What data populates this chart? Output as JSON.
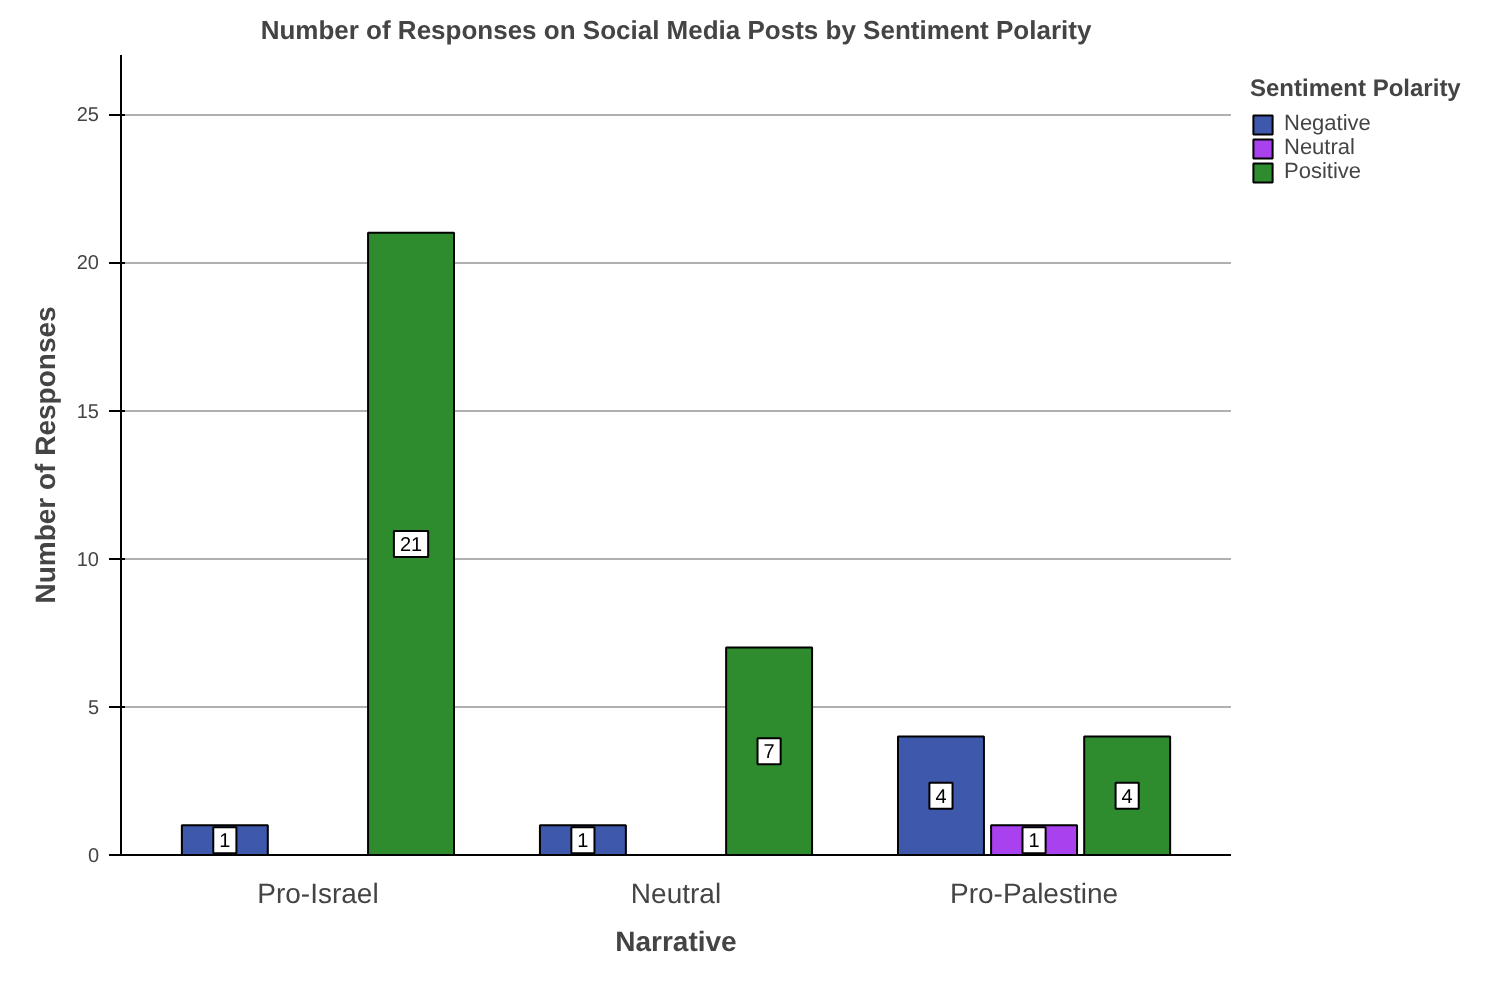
{
  "chart_data": {
    "type": "bar",
    "title": "Number of Responses on Social Media Posts by Sentiment Polarity",
    "xlabel": "Narrative",
    "ylabel": "Number of Responses",
    "legend_title": "Sentiment Polarity",
    "categories": [
      "Pro-Israel",
      "Neutral",
      "Pro-Palestine"
    ],
    "series": [
      {
        "name": "Negative",
        "color": "#3e58ac",
        "values": [
          1,
          1,
          4
        ]
      },
      {
        "name": "Neutral",
        "color": "#a941ef",
        "values": [
          null,
          null,
          1
        ]
      },
      {
        "name": "Positive",
        "color": "#2e8b2e",
        "values": [
          21,
          7,
          4
        ]
      }
    ],
    "ylim": [
      0,
      27
    ],
    "yticks": [
      0,
      5,
      10,
      15,
      20,
      25
    ],
    "grid": "y",
    "legend": "right",
    "data_labels": true
  }
}
